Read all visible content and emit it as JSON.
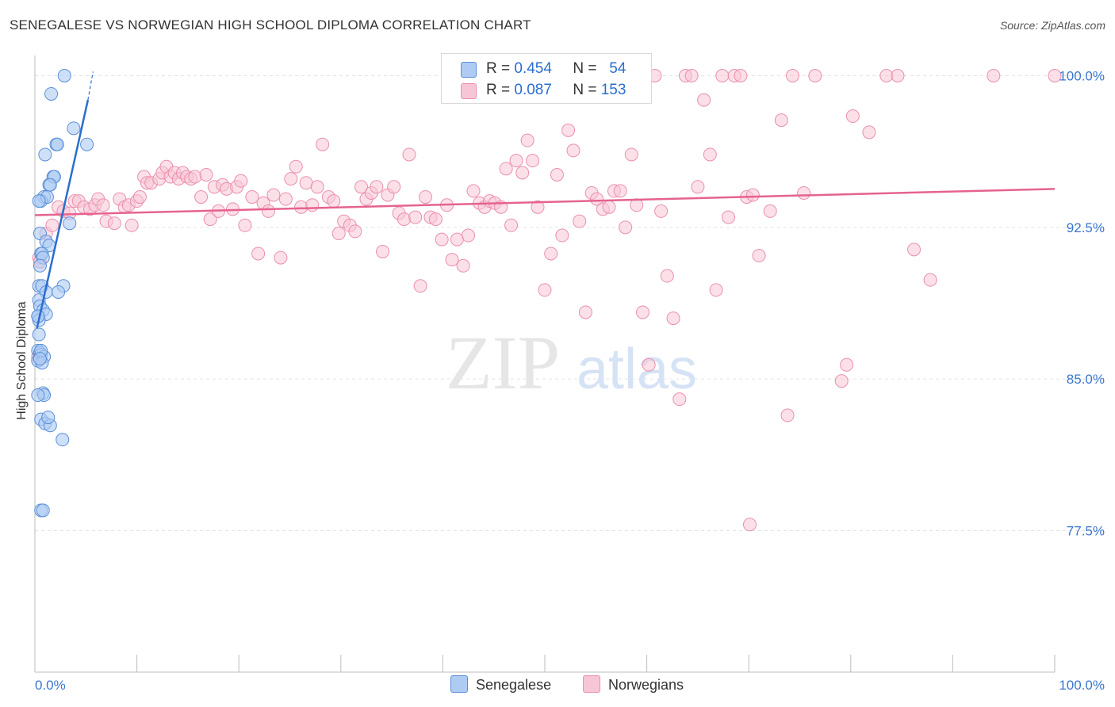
{
  "title": "SENEGALESE VS NORWEGIAN HIGH SCHOOL DIPLOMA CORRELATION CHART",
  "source": "Source: ZipAtlas.com",
  "colors": {
    "senegalese_fill": "#aecbf4",
    "senegalese_stroke": "#5b8fd8",
    "senegalese_line": "#2a6ecf",
    "norwegian_fill": "#f7c6d6",
    "norwegian_stroke": "#ea8fae",
    "norwegian_line": "#e5638f",
    "axis_label": "#3a76cf"
  },
  "legend": {
    "r_label": "R =",
    "n_label": "N =",
    "senegalese": {
      "r": "0.454",
      "n": "54"
    },
    "norwegian": {
      "r": "0.087",
      "n": "153"
    }
  },
  "bottom_legend": {
    "senegalese": "Senegalese",
    "norwegian": "Norwegians"
  },
  "watermark": {
    "zip": "ZIP",
    "atlas": "atlas"
  },
  "chart_data": {
    "type": "scatter",
    "title": "SENEGALESE VS NORWEGIAN HIGH SCHOOL DIPLOMA CORRELATION CHART",
    "xlabel": "",
    "ylabel": "High School Diploma",
    "xlim": [
      0,
      100
    ],
    "ylim": [
      70.5,
      101
    ],
    "x_tick_labels": [
      "0.0%",
      "100.0%"
    ],
    "y_ticks": [
      77.5,
      85.0,
      92.5,
      100.0
    ],
    "y_tick_labels": [
      "77.5%",
      "85.0%",
      "92.5%",
      "100.0%"
    ],
    "grid": true,
    "legend_position": "top-center",
    "series": [
      {
        "name": "Senegalese",
        "trend": {
          "x0": 0.2,
          "y0": 87.5,
          "x1": 5.2,
          "y1": 98.8,
          "dash_to_x": 5.7,
          "dash_to_y": 100.2
        },
        "points": [
          [
            2.9,
            100.0
          ],
          [
            1.6,
            99.1
          ],
          [
            3.8,
            97.4
          ],
          [
            2.1,
            96.6
          ],
          [
            2.2,
            96.6
          ],
          [
            5.1,
            96.6
          ],
          [
            1.0,
            96.1
          ],
          [
            1.8,
            95.0
          ],
          [
            1.9,
            95.0
          ],
          [
            1.4,
            94.6
          ],
          [
            1.5,
            94.6
          ],
          [
            0.9,
            94.0
          ],
          [
            0.6,
            93.8
          ],
          [
            1.2,
            94.0
          ],
          [
            0.4,
            93.8
          ],
          [
            3.4,
            92.7
          ],
          [
            0.5,
            92.2
          ],
          [
            1.1,
            91.8
          ],
          [
            1.4,
            91.6
          ],
          [
            0.6,
            91.2
          ],
          [
            0.7,
            91.2
          ],
          [
            0.8,
            91.0
          ],
          [
            0.5,
            90.6
          ],
          [
            0.4,
            89.6
          ],
          [
            2.8,
            89.6
          ],
          [
            0.7,
            89.6
          ],
          [
            1.1,
            89.3
          ],
          [
            2.3,
            89.3
          ],
          [
            0.4,
            88.9
          ],
          [
            0.5,
            88.6
          ],
          [
            0.8,
            88.4
          ],
          [
            1.1,
            88.2
          ],
          [
            0.3,
            88.1
          ],
          [
            0.4,
            87.9
          ],
          [
            0.4,
            87.2
          ],
          [
            0.3,
            86.4
          ],
          [
            0.5,
            86.3
          ],
          [
            0.6,
            86.2
          ],
          [
            0.9,
            86.1
          ],
          [
            0.3,
            85.9
          ],
          [
            0.7,
            85.8
          ],
          [
            0.8,
            84.3
          ],
          [
            0.9,
            84.2
          ],
          [
            0.6,
            83.0
          ],
          [
            1.0,
            82.8
          ],
          [
            1.5,
            82.7
          ],
          [
            2.7,
            82.0
          ],
          [
            0.6,
            78.5
          ],
          [
            0.8,
            78.5
          ],
          [
            0.3,
            84.2
          ],
          [
            0.3,
            88.1
          ],
          [
            0.6,
            86.4
          ],
          [
            0.5,
            86.0
          ],
          [
            1.3,
            83.1
          ]
        ]
      },
      {
        "name": "Norwegians",
        "trend": {
          "x0": 0,
          "y0": 93.1,
          "x1": 100,
          "y1": 94.4
        },
        "points": [
          [
            0.3,
            86.1
          ],
          [
            0.4,
            91.0
          ],
          [
            0.5,
            90.8
          ],
          [
            1.1,
            92.2
          ],
          [
            1.7,
            92.6
          ],
          [
            2.3,
            93.5
          ],
          [
            2.8,
            93.3
          ],
          [
            3.4,
            93.2
          ],
          [
            3.9,
            93.8
          ],
          [
            4.3,
            93.8
          ],
          [
            4.8,
            93.5
          ],
          [
            5.4,
            93.4
          ],
          [
            5.9,
            93.6
          ],
          [
            6.2,
            93.9
          ],
          [
            6.7,
            93.6
          ],
          [
            7.0,
            92.8
          ],
          [
            7.8,
            92.7
          ],
          [
            8.3,
            93.9
          ],
          [
            8.8,
            93.5
          ],
          [
            9.2,
            93.6
          ],
          [
            9.5,
            92.6
          ],
          [
            10.0,
            93.8
          ],
          [
            10.3,
            94.0
          ],
          [
            10.7,
            95.0
          ],
          [
            11.0,
            94.7
          ],
          [
            11.4,
            94.7
          ],
          [
            12.2,
            94.9
          ],
          [
            12.5,
            95.2
          ],
          [
            12.9,
            95.5
          ],
          [
            13.3,
            95.0
          ],
          [
            13.7,
            95.2
          ],
          [
            14.1,
            94.9
          ],
          [
            14.5,
            95.2
          ],
          [
            14.9,
            95.0
          ],
          [
            15.3,
            94.9
          ],
          [
            15.7,
            95.0
          ],
          [
            16.3,
            94.0
          ],
          [
            16.8,
            95.1
          ],
          [
            17.2,
            92.9
          ],
          [
            17.6,
            94.5
          ],
          [
            18.0,
            93.3
          ],
          [
            18.4,
            94.6
          ],
          [
            18.8,
            94.4
          ],
          [
            19.4,
            93.4
          ],
          [
            19.8,
            94.5
          ],
          [
            20.2,
            94.8
          ],
          [
            20.6,
            92.6
          ],
          [
            21.3,
            94.0
          ],
          [
            21.9,
            91.2
          ],
          [
            22.4,
            93.7
          ],
          [
            22.9,
            93.3
          ],
          [
            23.4,
            94.1
          ],
          [
            24.1,
            91.0
          ],
          [
            24.6,
            93.9
          ],
          [
            25.1,
            94.9
          ],
          [
            25.6,
            95.5
          ],
          [
            26.1,
            93.5
          ],
          [
            26.6,
            94.7
          ],
          [
            27.2,
            93.6
          ],
          [
            27.7,
            94.5
          ],
          [
            28.2,
            96.6
          ],
          [
            28.8,
            94.0
          ],
          [
            29.3,
            93.8
          ],
          [
            29.8,
            92.2
          ],
          [
            30.3,
            92.8
          ],
          [
            30.9,
            92.6
          ],
          [
            31.4,
            92.3
          ],
          [
            32.0,
            94.5
          ],
          [
            32.5,
            93.9
          ],
          [
            33.0,
            94.2
          ],
          [
            33.5,
            94.5
          ],
          [
            34.1,
            91.3
          ],
          [
            34.6,
            94.1
          ],
          [
            35.2,
            94.5
          ],
          [
            35.7,
            93.2
          ],
          [
            36.2,
            92.9
          ],
          [
            36.7,
            96.1
          ],
          [
            37.3,
            93.0
          ],
          [
            37.8,
            89.6
          ],
          [
            38.3,
            94.0
          ],
          [
            38.8,
            93.0
          ],
          [
            39.3,
            92.9
          ],
          [
            39.9,
            91.9
          ],
          [
            40.4,
            93.6
          ],
          [
            40.9,
            90.9
          ],
          [
            41.4,
            91.9
          ],
          [
            42.0,
            90.6
          ],
          [
            42.5,
            92.1
          ],
          [
            43.0,
            94.3
          ],
          [
            43.6,
            93.7
          ],
          [
            44.1,
            93.5
          ],
          [
            44.6,
            93.8
          ],
          [
            45.1,
            93.7
          ],
          [
            45.7,
            93.5
          ],
          [
            46.2,
            95.4
          ],
          [
            46.7,
            92.6
          ],
          [
            47.2,
            95.8
          ],
          [
            47.8,
            95.2
          ],
          [
            48.3,
            96.8
          ],
          [
            48.8,
            95.8
          ],
          [
            49.3,
            93.5
          ],
          [
            50.0,
            89.4
          ],
          [
            50.6,
            91.2
          ],
          [
            51.2,
            95.1
          ],
          [
            51.7,
            92.1
          ],
          [
            52.3,
            97.3
          ],
          [
            52.8,
            96.3
          ],
          [
            53.4,
            92.8
          ],
          [
            54.0,
            88.3
          ],
          [
            54.6,
            94.2
          ],
          [
            55.1,
            93.9
          ],
          [
            55.7,
            93.4
          ],
          [
            56.3,
            93.5
          ],
          [
            56.8,
            94.3
          ],
          [
            57.4,
            94.3
          ],
          [
            57.9,
            92.5
          ],
          [
            58.5,
            96.1
          ],
          [
            59.0,
            93.6
          ],
          [
            59.6,
            88.3
          ],
          [
            60.2,
            85.7
          ],
          [
            60.8,
            100.0
          ],
          [
            61.4,
            93.3
          ],
          [
            62.0,
            90.1
          ],
          [
            62.6,
            88.0
          ],
          [
            63.2,
            84.0
          ],
          [
            63.8,
            100.0
          ],
          [
            64.4,
            100.0
          ],
          [
            65.0,
            94.5
          ],
          [
            65.6,
            98.8
          ],
          [
            66.2,
            96.1
          ],
          [
            66.8,
            89.4
          ],
          [
            67.4,
            100.0
          ],
          [
            68.0,
            93.0
          ],
          [
            68.6,
            100.0
          ],
          [
            69.2,
            100.0
          ],
          [
            69.8,
            94.0
          ],
          [
            70.4,
            94.1
          ],
          [
            71.0,
            91.1
          ],
          [
            72.1,
            93.3
          ],
          [
            73.2,
            97.8
          ],
          [
            74.3,
            100.0
          ],
          [
            75.4,
            94.2
          ],
          [
            76.5,
            100.0
          ],
          [
            79.1,
            84.9
          ],
          [
            79.6,
            85.7
          ],
          [
            80.2,
            98.0
          ],
          [
            81.8,
            97.2
          ],
          [
            83.5,
            100.0
          ],
          [
            84.6,
            100.0
          ],
          [
            86.2,
            91.4
          ],
          [
            87.8,
            89.9
          ],
          [
            94.0,
            100.0
          ],
          [
            100.0,
            100.0
          ],
          [
            70.1,
            77.8
          ],
          [
            73.8,
            83.2
          ]
        ]
      }
    ]
  }
}
